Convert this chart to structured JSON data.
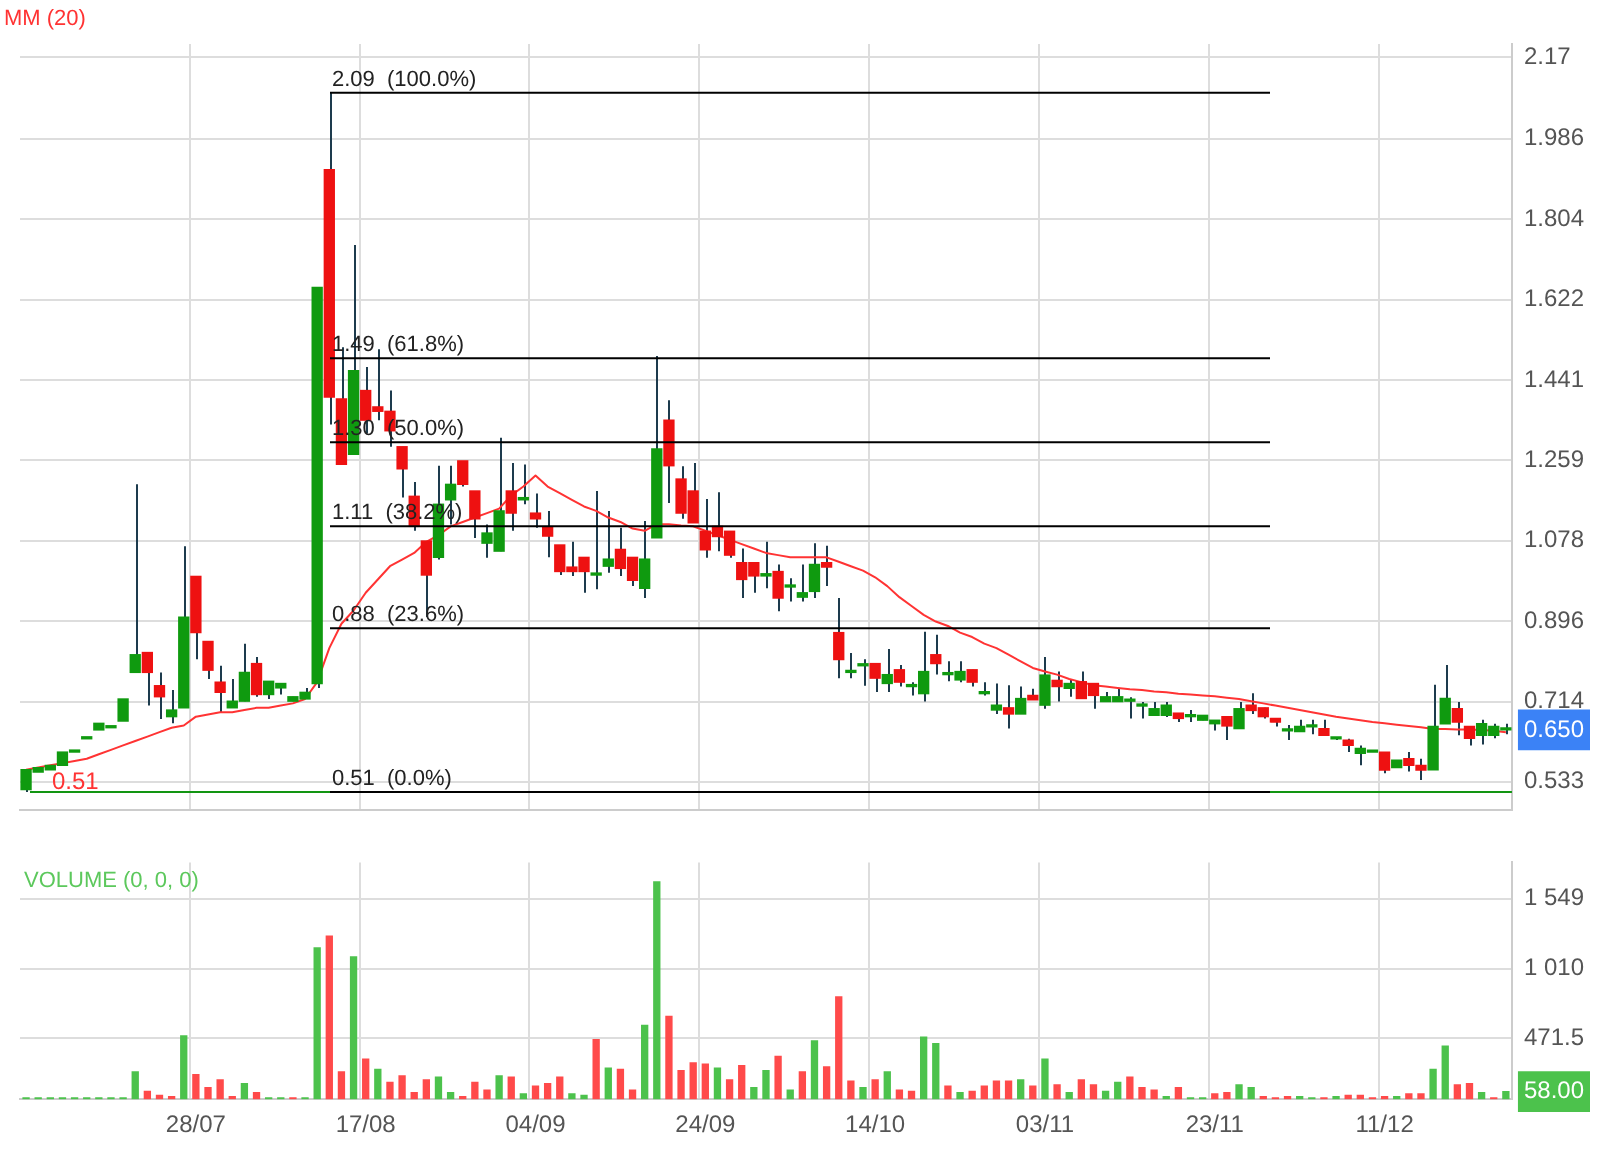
{
  "chart_data": [
    {
      "type": "candlestick",
      "tick_labels": "y",
      "grid": true,
      "legend": "top left",
      "categories": [
        null,
        null,
        null,
        null,
        null,
        null,
        null,
        null,
        null,
        null,
        null,
        null,
        null,
        null,
        null,
        null,
        null,
        null,
        null,
        null,
        null,
        null,
        null,
        null,
        null,
        null,
        null,
        null,
        null,
        null,
        null,
        null,
        null,
        null,
        null,
        null,
        null,
        null,
        null,
        null,
        null,
        null,
        null,
        null,
        null,
        null,
        null,
        null,
        null,
        null,
        null,
        null,
        null,
        null,
        null,
        null,
        null,
        null,
        null,
        null,
        null,
        null,
        null,
        null,
        null,
        null,
        null,
        null,
        null,
        null,
        null,
        null,
        null,
        null,
        null,
        null,
        null,
        null,
        null,
        null,
        null,
        null,
        null,
        null,
        null,
        null,
        null,
        null,
        null,
        null,
        null,
        null,
        null,
        null,
        null,
        null,
        null,
        null,
        null,
        null,
        null,
        null,
        null,
        null,
        null,
        null,
        null,
        null,
        null,
        null,
        null,
        null,
        null,
        null,
        null,
        null,
        null,
        null,
        null,
        null,
        null,
        null,
        null
      ],
      "ohlc": [
        [
          0.515,
          0.56,
          0.51,
          0.56
        ],
        [
          0.555,
          0.565,
          0.555,
          0.565
        ],
        [
          0.56,
          0.57,
          0.56,
          0.57
        ],
        [
          0.57,
          0.6,
          0.57,
          0.6
        ],
        [
          0.6,
          0.6,
          0.6,
          0.6
        ],
        [
          0.63,
          0.63,
          0.63,
          0.63
        ],
        [
          0.65,
          0.665,
          0.65,
          0.665
        ],
        [
          0.655,
          0.655,
          0.655,
          0.655
        ],
        [
          0.67,
          0.72,
          0.67,
          0.72
        ],
        [
          0.78,
          1.205,
          0.78,
          0.82
        ],
        [
          0.825,
          0.825,
          0.705,
          0.78
        ],
        [
          0.75,
          0.78,
          0.675,
          0.725
        ],
        [
          0.68,
          0.74,
          0.665,
          0.695
        ],
        [
          0.7,
          1.065,
          0.7,
          0.905
        ],
        [
          0.997,
          0.997,
          0.81,
          0.87
        ],
        [
          0.85,
          0.85,
          0.765,
          0.785
        ],
        [
          0.758,
          0.795,
          0.69,
          0.735
        ],
        [
          0.7,
          0.765,
          0.7,
          0.715
        ],
        [
          0.715,
          0.845,
          0.715,
          0.78
        ],
        [
          0.8,
          0.815,
          0.725,
          0.73
        ],
        [
          0.73,
          0.76,
          0.72,
          0.76
        ],
        [
          0.745,
          0.755,
          0.73,
          0.755
        ],
        [
          0.715,
          0.725,
          0.715,
          0.725
        ],
        [
          0.72,
          0.745,
          0.72,
          0.735
        ],
        [
          0.755,
          1.65,
          0.745,
          1.65
        ],
        [
          1.916,
          2.09,
          1.34,
          1.402
        ],
        [
          1.398,
          1.515,
          1.25,
          1.25
        ],
        [
          1.273,
          1.746,
          1.273,
          1.462
        ],
        [
          1.417,
          1.47,
          1.32,
          1.35
        ],
        [
          1.38,
          1.51,
          1.35,
          1.37
        ],
        [
          1.37,
          1.417,
          1.29,
          1.326
        ],
        [
          1.29,
          1.29,
          1.175,
          1.24
        ],
        [
          1.178,
          1.21,
          1.1,
          1.11
        ],
        [
          1.077,
          1.077,
          0.905,
          1.0
        ],
        [
          1.04,
          1.247,
          1.035,
          1.16
        ],
        [
          1.17,
          1.247,
          1.114,
          1.205
        ],
        [
          1.258,
          1.258,
          1.2,
          1.205
        ],
        [
          1.19,
          1.19,
          1.084,
          1.127
        ],
        [
          1.072,
          1.114,
          1.039,
          1.095
        ],
        [
          1.054,
          1.31,
          1.054,
          1.145
        ],
        [
          1.19,
          1.253,
          1.1,
          1.14
        ],
        [
          1.17,
          1.25,
          1.16,
          1.175
        ],
        [
          1.14,
          1.184,
          1.107,
          1.127
        ],
        [
          1.108,
          1.145,
          1.04,
          1.088
        ],
        [
          1.068,
          1.068,
          1.0,
          1.008
        ],
        [
          1.018,
          1.075,
          0.998,
          1.008
        ],
        [
          1.04,
          1.04,
          0.96,
          1.008
        ],
        [
          1.0,
          1.19,
          0.968,
          1.0
        ],
        [
          1.02,
          1.145,
          1.005,
          1.036
        ],
        [
          1.058,
          1.107,
          0.998,
          1.015
        ],
        [
          1.04,
          1.04,
          0.975,
          0.988
        ],
        [
          0.97,
          1.122,
          0.948,
          1.036
        ],
        [
          1.084,
          1.495,
          1.084,
          1.285
        ],
        [
          1.35,
          1.395,
          1.163,
          1.247
        ],
        [
          1.217,
          1.246,
          1.127,
          1.14
        ],
        [
          1.19,
          1.253,
          1.118,
          1.118
        ],
        [
          1.099,
          1.172,
          1.039,
          1.057
        ],
        [
          1.11,
          1.187,
          1.054,
          1.087
        ],
        [
          1.099,
          1.099,
          1.039,
          1.045
        ],
        [
          1.028,
          1.06,
          0.948,
          0.99
        ],
        [
          1.028,
          1.028,
          0.96,
          0.998
        ],
        [
          0.998,
          1.075,
          0.97,
          1.003
        ],
        [
          1.008,
          1.024,
          0.918,
          0.948
        ],
        [
          0.973,
          0.993,
          0.94,
          0.977
        ],
        [
          0.95,
          1.024,
          0.94,
          0.96
        ],
        [
          0.963,
          1.072,
          0.948,
          1.024
        ],
        [
          1.028,
          1.066,
          0.975,
          1.018
        ],
        [
          0.87,
          0.948,
          0.767,
          0.809
        ],
        [
          0.78,
          0.824,
          0.767,
          0.78
        ],
        [
          0.795,
          0.81,
          0.75,
          0.795
        ],
        [
          0.8,
          0.8,
          0.736,
          0.767
        ],
        [
          0.755,
          0.833,
          0.736,
          0.775
        ],
        [
          0.786,
          0.797,
          0.748,
          0.758
        ],
        [
          0.748,
          0.758,
          0.728,
          0.748
        ],
        [
          0.732,
          0.872,
          0.714,
          0.782
        ],
        [
          0.82,
          0.865,
          0.775,
          0.8
        ],
        [
          0.775,
          0.805,
          0.76,
          0.775
        ],
        [
          0.763,
          0.805,
          0.758,
          0.782
        ],
        [
          0.786,
          0.786,
          0.748,
          0.758
        ],
        [
          0.732,
          0.758,
          0.728,
          0.732
        ],
        [
          0.695,
          0.755,
          0.686,
          0.706
        ],
        [
          0.7,
          0.751,
          0.653,
          0.686
        ],
        [
          0.686,
          0.748,
          0.686,
          0.721
        ],
        [
          0.728,
          0.743,
          0.718,
          0.718
        ],
        [
          0.706,
          0.815,
          0.698,
          0.774
        ],
        [
          0.762,
          0.782,
          0.714,
          0.748
        ],
        [
          0.744,
          0.764,
          0.725,
          0.755
        ],
        [
          0.759,
          0.782,
          0.721,
          0.721
        ],
        [
          0.755,
          0.755,
          0.698,
          0.728
        ],
        [
          0.714,
          0.736,
          0.714,
          0.725
        ],
        [
          0.714,
          0.743,
          0.714,
          0.725
        ],
        [
          0.715,
          0.724,
          0.676,
          0.715
        ],
        [
          0.704,
          0.713,
          0.676,
          0.704
        ],
        [
          0.683,
          0.713,
          0.683,
          0.698
        ],
        [
          0.683,
          0.713,
          0.679,
          0.706
        ],
        [
          0.688,
          0.688,
          0.668,
          0.676
        ],
        [
          0.68,
          0.695,
          0.668,
          0.68
        ],
        [
          0.672,
          0.683,
          0.672,
          0.683
        ],
        [
          0.664,
          0.672,
          0.649,
          0.672
        ],
        [
          0.68,
          0.68,
          0.627,
          0.659
        ],
        [
          0.653,
          0.713,
          0.653,
          0.698
        ],
        [
          0.706,
          0.733,
          0.686,
          0.694
        ],
        [
          0.7,
          0.7,
          0.676,
          0.68
        ],
        [
          0.676,
          0.676,
          0.658,
          0.668
        ],
        [
          0.648,
          0.661,
          0.627,
          0.648
        ],
        [
          0.646,
          0.673,
          0.646,
          0.658
        ],
        [
          0.657,
          0.673,
          0.64,
          0.657
        ],
        [
          0.653,
          0.673,
          0.638,
          0.638
        ],
        [
          0.63,
          0.632,
          0.627,
          0.63
        ],
        [
          0.627,
          0.63,
          0.6,
          0.615
        ],
        [
          0.597,
          0.615,
          0.57,
          0.608
        ],
        [
          0.6,
          0.6,
          0.6,
          0.6
        ],
        [
          0.6,
          0.6,
          0.552,
          0.559
        ],
        [
          0.565,
          0.582,
          0.565,
          0.582
        ],
        [
          0.585,
          0.6,
          0.556,
          0.57
        ],
        [
          0.57,
          0.585,
          0.537,
          0.559
        ],
        [
          0.56,
          0.752,
          0.56,
          0.658
        ],
        [
          0.664,
          0.797,
          0.664,
          0.721
        ],
        [
          0.698,
          0.713,
          0.638,
          0.668
        ],
        [
          0.658,
          0.658,
          0.615,
          0.631
        ],
        [
          0.638,
          0.673,
          0.617,
          0.664
        ],
        [
          0.638,
          0.664,
          0.631,
          0.658
        ],
        [
          0.65,
          0.664,
          0.64,
          0.65
        ]
      ],
      "colors": [
        "#0f9a0f",
        "#0f9a0f",
        "#0f9a0f",
        "#0f9a0f",
        "#0f9a0f",
        "#0f9a0f",
        "#0f9a0f",
        "#0f9a0f",
        "#0f9a0f",
        "#0f9a0f",
        "#ee1111",
        "#ee1111",
        "#0f9a0f",
        "#0f9a0f",
        "#ee1111",
        "#ee1111",
        "#ee1111",
        "#0f9a0f",
        "#0f9a0f",
        "#ee1111",
        "#0f9a0f",
        "#0f9a0f",
        "#0f9a0f",
        "#0f9a0f",
        "#0f9a0f",
        "#ee1111",
        "#ee1111",
        "#0f9a0f",
        "#ee1111",
        "#ee1111",
        "#ee1111",
        "#ee1111",
        "#ee1111",
        "#ee1111",
        "#0f9a0f",
        "#0f9a0f",
        "#ee1111",
        "#ee1111",
        "#0f9a0f",
        "#0f9a0f",
        "#ee1111",
        "#0f9a0f",
        "#ee1111",
        "#ee1111",
        "#ee1111",
        "#ee1111",
        "#ee1111",
        "#0f9a0f",
        "#0f9a0f",
        "#ee1111",
        "#ee1111",
        "#0f9a0f",
        "#0f9a0f",
        "#ee1111",
        "#ee1111",
        "#ee1111",
        "#ee1111",
        "#ee1111",
        "#ee1111",
        "#ee1111",
        "#ee1111",
        "#0f9a0f",
        "#ee1111",
        "#0f9a0f",
        "#0f9a0f",
        "#0f9a0f",
        "#ee1111",
        "#ee1111",
        "#0f9a0f",
        "#0f9a0f",
        "#ee1111",
        "#0f9a0f",
        "#ee1111",
        "#0f9a0f",
        "#0f9a0f",
        "#ee1111",
        "#0f9a0f",
        "#0f9a0f",
        "#ee1111",
        "#0f9a0f",
        "#0f9a0f",
        "#ee1111",
        "#0f9a0f",
        "#ee1111",
        "#0f9a0f",
        "#ee1111",
        "#0f9a0f",
        "#ee1111",
        "#ee1111",
        "#0f9a0f",
        "#0f9a0f",
        "#0f9a0f",
        "#0f9a0f",
        "#0f9a0f",
        "#0f9a0f",
        "#ee1111",
        "#0f9a0f",
        "#0f9a0f",
        "#0f9a0f",
        "#ee1111",
        "#0f9a0f",
        "#ee1111",
        "#ee1111",
        "#ee1111",
        "#0f9a0f",
        "#0f9a0f",
        "#0f9a0f",
        "#ee1111",
        "#0f9a0f",
        "#ee1111",
        "#0f9a0f",
        "#0f9a0f",
        "#ee1111",
        "#0f9a0f",
        "#ee1111",
        "#ee1111",
        "#0f9a0f",
        "#0f9a0f",
        "#ee1111",
        "#ee1111",
        "#0f9a0f",
        "#0f9a0f",
        "#0f9a0f"
      ],
      "series": [
        {
          "type": "line",
          "name": "MM (20)",
          "color": "#ff3333",
          "values": [
            0.56,
            0.565,
            0.57,
            0.575,
            0.58,
            0.585,
            0.595,
            0.605,
            0.615,
            0.625,
            0.635,
            0.645,
            0.655,
            0.66,
            0.68,
            0.685,
            0.69,
            0.69,
            0.695,
            0.7,
            0.7,
            0.705,
            0.71,
            0.72,
            0.758,
            0.835,
            0.89,
            0.92,
            0.96,
            0.99,
            1.02,
            1.035,
            1.05,
            1.075,
            1.09,
            1.11,
            1.12,
            1.13,
            1.14,
            1.15,
            1.18,
            1.2,
            1.225,
            1.2,
            1.185,
            1.17,
            1.155,
            1.145,
            1.13,
            1.12,
            1.105,
            1.1,
            1.115,
            1.115,
            1.112,
            1.11,
            1.1,
            1.09,
            1.08,
            1.07,
            1.06,
            1.05,
            1.045,
            1.04,
            1.04,
            1.04,
            1.04,
            1.03,
            1.02,
            1.01,
            0.995,
            0.975,
            0.95,
            0.93,
            0.91,
            0.895,
            0.885,
            0.87,
            0.86,
            0.845,
            0.835,
            0.82,
            0.805,
            0.79,
            0.782,
            0.775,
            0.765,
            0.758,
            0.751,
            0.748,
            0.745,
            0.742,
            0.74,
            0.737,
            0.735,
            0.732,
            0.73,
            0.728,
            0.726,
            0.723,
            0.72,
            0.715,
            0.71,
            0.705,
            0.7,
            0.695,
            0.69,
            0.685,
            0.68,
            0.676,
            0.672,
            0.668,
            0.665,
            0.662,
            0.659,
            0.656,
            0.652,
            0.652,
            0.651,
            0.651,
            0.65,
            0.648,
            0.645
          ]
        }
      ],
      "ylim": [
        0.47,
        2.2
      ],
      "yticks": [
        0.533,
        0.714,
        0.896,
        1.078,
        1.259,
        1.441,
        1.622,
        1.804,
        1.986,
        2.17,
        {
          "value": 0.65,
          "label": "0.650"
        }
      ],
      "ref_lines": [
        {
          "axis": "y",
          "value": 2.09,
          "label": "2.09  (100.0%)",
          "color": "#000000"
        },
        {
          "axis": "y",
          "value": 1.49,
          "label": "1.49  (61.8%)",
          "color": "#000000"
        },
        {
          "axis": "y",
          "value": 1.3,
          "label": "1.30  (50.0%)",
          "color": "#000000"
        },
        {
          "axis": "y",
          "value": 1.11,
          "label": "1.11  (38.2%)",
          "color": "#000000"
        },
        {
          "axis": "y",
          "value": 0.88,
          "label": "0.88  (23.6%)",
          "color": "#000000"
        },
        {
          "axis": "y",
          "value": 0.51,
          "label": "0.51  (0.0%)",
          "color": "#000000"
        },
        {
          "axis": "y",
          "value": 0.51,
          "color": "#129512"
        }
      ],
      "annotations": [
        {
          "text": "0.51",
          "y": 0.51
        }
      ]
    },
    {
      "type": "bar",
      "title": "VOLUME (0, 0, 0)",
      "grid": true,
      "categories": [
        null,
        null,
        null,
        null,
        null,
        null,
        null,
        null,
        null,
        null,
        null,
        null,
        null,
        null,
        "28/07",
        null,
        null,
        null,
        null,
        null,
        null,
        null,
        null,
        null,
        null,
        null,
        null,
        null,
        "17/08",
        null,
        null,
        null,
        null,
        null,
        null,
        null,
        null,
        null,
        null,
        null,
        null,
        null,
        "04/09",
        null,
        null,
        null,
        null,
        null,
        null,
        null,
        null,
        null,
        null,
        null,
        null,
        null,
        "24/09",
        null,
        null,
        null,
        null,
        null,
        null,
        null,
        null,
        null,
        null,
        null,
        null,
        null,
        "14/10",
        null,
        null,
        null,
        null,
        null,
        null,
        null,
        null,
        null,
        null,
        null,
        null,
        null,
        "03/11",
        null,
        null,
        null,
        null,
        null,
        null,
        null,
        null,
        null,
        null,
        null,
        null,
        null,
        "23/11",
        null,
        null,
        null,
        null,
        null,
        null,
        null,
        null,
        null,
        null,
        null,
        null,
        null,
        "11/12",
        null,
        null,
        null,
        null,
        null,
        null,
        null,
        null,
        null,
        null
      ],
      "values": [
        10,
        10,
        10,
        10,
        10,
        10,
        10,
        10,
        10,
        210,
        60,
        30,
        20,
        490,
        190,
        90,
        150,
        20,
        120,
        50,
        10,
        10,
        10,
        10,
        1170,
        1260,
        210,
        1100,
        310,
        230,
        130,
        180,
        50,
        150,
        170,
        50,
        20,
        130,
        70,
        180,
        170,
        40,
        100,
        120,
        170,
        40,
        30,
        460,
        240,
        230,
        70,
        570,
        1680,
        640,
        220,
        280,
        270,
        240,
        150,
        260,
        90,
        220,
        330,
        70,
        210,
        450,
        250,
        790,
        140,
        90,
        150,
        210,
        70,
        60,
        480,
        430,
        100,
        50,
        60,
        100,
        140,
        140,
        150,
        100,
        310,
        110,
        50,
        150,
        110,
        60,
        130,
        170,
        90,
        70,
        20,
        90,
        10,
        10,
        40,
        50,
        110,
        90,
        20,
        10,
        20,
        20,
        10,
        10,
        20,
        30,
        30,
        10,
        20,
        20,
        40,
        40,
        230,
        410,
        110,
        120,
        50,
        10,
        58
      ],
      "colors": [
        "#4cc24c",
        "#4cc24c",
        "#4cc24c",
        "#4cc24c",
        "#4cc24c",
        "#4cc24c",
        "#4cc24c",
        "#4cc24c",
        "#4cc24c",
        "#4cc24c",
        "#ff4a4a",
        "#ff4a4a",
        "#ff4a4a",
        "#4cc24c",
        "#ff4a4a",
        "#ff4a4a",
        "#ff4a4a",
        "#ff4a4a",
        "#4cc24c",
        "#ff4a4a",
        "#4cc24c",
        "#4cc24c",
        "#ff4a4a",
        "#4cc24c",
        "#4cc24c",
        "#ff4a4a",
        "#ff4a4a",
        "#4cc24c",
        "#ff4a4a",
        "#4cc24c",
        "#ff4a4a",
        "#ff4a4a",
        "#ff4a4a",
        "#ff4a4a",
        "#4cc24c",
        "#4cc24c",
        "#ff4a4a",
        "#ff4a4a",
        "#ff4a4a",
        "#4cc24c",
        "#ff4a4a",
        "#4cc24c",
        "#ff4a4a",
        "#ff4a4a",
        "#ff4a4a",
        "#4cc24c",
        "#4cc24c",
        "#ff4a4a",
        "#4cc24c",
        "#ff4a4a",
        "#ff4a4a",
        "#4cc24c",
        "#4cc24c",
        "#ff4a4a",
        "#ff4a4a",
        "#ff4a4a",
        "#ff4a4a",
        "#4cc24c",
        "#ff4a4a",
        "#ff4a4a",
        "#4cc24c",
        "#4cc24c",
        "#ff4a4a",
        "#4cc24c",
        "#ff4a4a",
        "#4cc24c",
        "#ff4a4a",
        "#ff4a4a",
        "#ff4a4a",
        "#4cc24c",
        "#ff4a4a",
        "#4cc24c",
        "#ff4a4a",
        "#ff4a4a",
        "#4cc24c",
        "#4cc24c",
        "#ff4a4a",
        "#4cc24c",
        "#ff4a4a",
        "#ff4a4a",
        "#ff4a4a",
        "#ff4a4a",
        "#4cc24c",
        "#ff4a4a",
        "#4cc24c",
        "#ff4a4a",
        "#4cc24c",
        "#ff4a4a",
        "#ff4a4a",
        "#4cc24c",
        "#4cc24c",
        "#ff4a4a",
        "#ff4a4a",
        "#ff4a4a",
        "#4cc24c",
        "#ff4a4a",
        "#4cc24c",
        "#4cc24c",
        "#ff4a4a",
        "#ff4a4a",
        "#4cc24c",
        "#4cc24c",
        "#ff4a4a",
        "#ff4a4a",
        "#ff4a4a",
        "#4cc24c",
        "#4cc24c",
        "#ff4a4a",
        "#4cc24c",
        "#ff4a4a",
        "#ff4a4a",
        "#ff4a4a",
        "#ff4a4a",
        "#4cc24c",
        "#ff4a4a",
        "#ff4a4a",
        "#4cc24c",
        "#4cc24c",
        "#ff4a4a",
        "#ff4a4a",
        "#4cc24c",
        "#ff4a4a",
        "#4cc24c"
      ],
      "ylim": [
        0,
        1830
      ],
      "yticks": [
        {
          "value": 471.5,
          "label": "471.5"
        },
        {
          "value": 1010,
          "label": "1 010"
        },
        {
          "value": 1549,
          "label": "1 549"
        },
        {
          "value": 58,
          "label": "58.00"
        }
      ]
    }
  ]
}
